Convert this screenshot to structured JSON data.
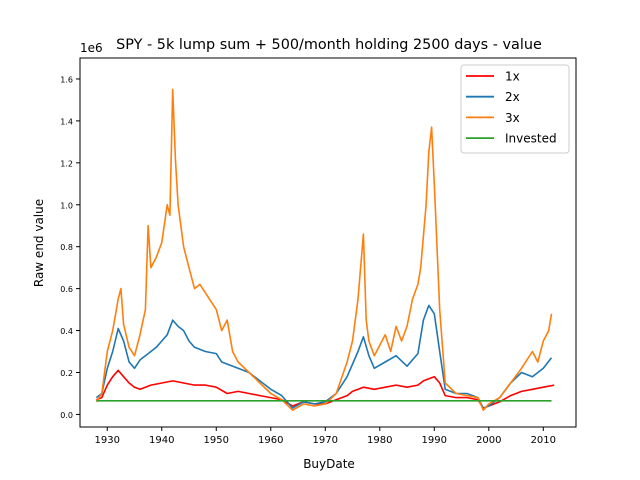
{
  "chart_data": {
    "type": "line",
    "title": "SPY - 5k lump sum + 500/month holding 2500 days - value",
    "xlabel": "BuyDate",
    "ylabel": "Raw end value",
    "y_offset_text": "1e6",
    "xlim": [
      1925,
      2016
    ],
    "ylim": [
      -0.06,
      1.7
    ],
    "x_ticks": [
      1930,
      1940,
      1950,
      1960,
      1970,
      1980,
      1990,
      2000,
      2010
    ],
    "x_tick_labels": [
      "1930",
      "1940",
      "1950",
      "1960",
      "1970",
      "1980",
      "1990",
      "2000",
      "2010"
    ],
    "y_ticks": [
      0.0,
      0.2,
      0.4,
      0.6,
      0.8,
      1.0,
      1.2,
      1.4,
      1.6
    ],
    "y_tick_labels": [
      "0.0",
      "0.2",
      "0.4",
      "0.6",
      "0.8",
      "1.0",
      "1.2",
      "1.4",
      "1.6"
    ],
    "legend_position": "top-right",
    "grid": false,
    "series": [
      {
        "name": "1x",
        "color": "#ff0000",
        "x": [
          1928,
          1929,
          1930,
          1931,
          1932,
          1933,
          1934,
          1935,
          1936,
          1937,
          1938,
          1940,
          1942,
          1944,
          1946,
          1948,
          1950,
          1952,
          1954,
          1956,
          1958,
          1960,
          1962,
          1964,
          1966,
          1968,
          1970,
          1972,
          1974,
          1975,
          1977,
          1979,
          1981,
          1983,
          1985,
          1987,
          1988,
          1989,
          1990,
          1991,
          1992,
          1994,
          1996,
          1998,
          1999,
          2000,
          2002,
          2004,
          2006,
          2008,
          2010,
          2012
        ],
        "y": [
          0.07,
          0.08,
          0.14,
          0.18,
          0.21,
          0.18,
          0.15,
          0.13,
          0.12,
          0.13,
          0.14,
          0.15,
          0.16,
          0.15,
          0.14,
          0.14,
          0.13,
          0.1,
          0.11,
          0.1,
          0.09,
          0.08,
          0.07,
          0.04,
          0.06,
          0.05,
          0.05,
          0.07,
          0.09,
          0.11,
          0.13,
          0.12,
          0.13,
          0.14,
          0.13,
          0.14,
          0.16,
          0.17,
          0.18,
          0.15,
          0.09,
          0.08,
          0.08,
          0.07,
          0.03,
          0.04,
          0.06,
          0.09,
          0.11,
          0.12,
          0.13,
          0.14
        ]
      },
      {
        "name": "2x",
        "color": "#1f77b4",
        "x": [
          1928,
          1929,
          1930,
          1931,
          1932,
          1933,
          1934,
          1935,
          1936,
          1937,
          1938,
          1939,
          1940,
          1941,
          1942,
          1943,
          1944,
          1945,
          1946,
          1948,
          1950,
          1951,
          1952,
          1954,
          1956,
          1958,
          1960,
          1962,
          1964,
          1966,
          1968,
          1970,
          1972,
          1974,
          1976,
          1977,
          1978,
          1979,
          1981,
          1983,
          1985,
          1987,
          1988,
          1989,
          1990,
          1991,
          1992,
          1994,
          1996,
          1998,
          1999,
          2000,
          2002,
          2004,
          2006,
          2008,
          2010,
          2011.5
        ],
        "y": [
          0.08,
          0.1,
          0.22,
          0.3,
          0.41,
          0.35,
          0.25,
          0.22,
          0.26,
          0.28,
          0.3,
          0.32,
          0.35,
          0.38,
          0.45,
          0.42,
          0.4,
          0.35,
          0.32,
          0.3,
          0.29,
          0.25,
          0.24,
          0.22,
          0.2,
          0.16,
          0.12,
          0.09,
          0.03,
          0.06,
          0.05,
          0.06,
          0.1,
          0.18,
          0.3,
          0.37,
          0.28,
          0.22,
          0.25,
          0.28,
          0.23,
          0.29,
          0.45,
          0.52,
          0.48,
          0.3,
          0.12,
          0.1,
          0.1,
          0.08,
          0.03,
          0.04,
          0.08,
          0.15,
          0.2,
          0.18,
          0.22,
          0.27
        ]
      },
      {
        "name": "3x",
        "color": "#ff7f0e",
        "x": [
          1928,
          1929,
          1930,
          1931,
          1932,
          1932.5,
          1933,
          1934,
          1935,
          1936,
          1937,
          1937.5,
          1938,
          1939,
          1940,
          1941,
          1941.5,
          1942,
          1942.5,
          1943,
          1944,
          1945,
          1946,
          1947,
          1948,
          1950,
          1951,
          1952,
          1953,
          1954,
          1956,
          1958,
          1960,
          1962,
          1964,
          1966,
          1968,
          1970,
          1972,
          1974,
          1975,
          1976,
          1977,
          1977.5,
          1978,
          1979,
          1980,
          1981,
          1982,
          1983,
          1984,
          1985,
          1986,
          1987,
          1987.5,
          1988,
          1988.5,
          1989,
          1989.5,
          1990,
          1991,
          1992,
          1994,
          1996,
          1998,
          1999,
          2000,
          2002,
          2004,
          2006,
          2008,
          2009,
          2010,
          2011,
          2011.5
        ],
        "y": [
          0.06,
          0.1,
          0.3,
          0.4,
          0.55,
          0.6,
          0.43,
          0.32,
          0.28,
          0.38,
          0.5,
          0.9,
          0.7,
          0.75,
          0.82,
          1.0,
          0.95,
          1.55,
          1.22,
          1.0,
          0.8,
          0.7,
          0.6,
          0.62,
          0.58,
          0.5,
          0.4,
          0.45,
          0.3,
          0.25,
          0.2,
          0.15,
          0.1,
          0.07,
          0.02,
          0.05,
          0.04,
          0.05,
          0.1,
          0.25,
          0.35,
          0.55,
          0.86,
          0.45,
          0.35,
          0.28,
          0.33,
          0.38,
          0.3,
          0.42,
          0.35,
          0.42,
          0.55,
          0.62,
          0.7,
          0.85,
          1.0,
          1.25,
          1.37,
          1.1,
          0.5,
          0.15,
          0.1,
          0.09,
          0.08,
          0.02,
          0.05,
          0.08,
          0.15,
          0.22,
          0.3,
          0.25,
          0.35,
          0.4,
          0.48
        ]
      },
      {
        "name": "Invested",
        "color": "#2ca02c",
        "x": [
          1928,
          2011.5
        ],
        "y": [
          0.065,
          0.065
        ]
      }
    ]
  }
}
